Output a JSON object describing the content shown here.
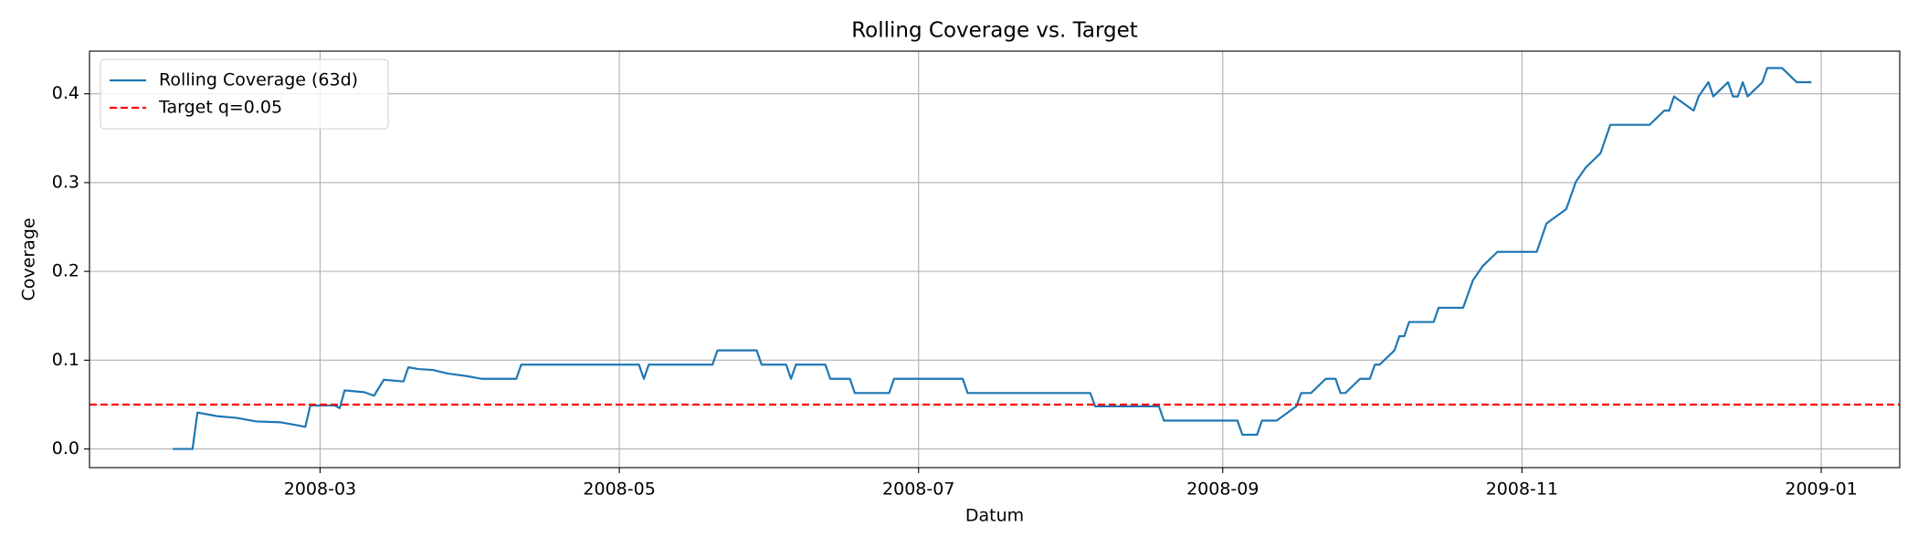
{
  "chart_data": {
    "type": "line",
    "title": "Rolling Coverage vs. Target",
    "xlabel": "Datum",
    "ylabel": "Coverage",
    "grid": true,
    "legend": "upper left",
    "xlim": [
      "2008-01-14",
      "2009-01-17"
    ],
    "xticks": [
      "2008-03",
      "2008-05",
      "2008-07",
      "2008-09",
      "2008-11",
      "2009-01"
    ],
    "ylim": [
      -0.021,
      0.448
    ],
    "yticks": [
      {
        "value": 0,
        "label": "0.0"
      },
      0.1,
      0.2,
      0.3,
      0.4
    ],
    "series": [
      {
        "name": "Rolling Coverage (63d)",
        "color": "#1f77b4",
        "x": [
          "2008-01-31",
          "2008-02-04",
          "2008-02-05",
          "2008-02-09",
          "2008-02-13",
          "2008-02-17",
          "2008-02-22",
          "2008-02-25",
          "2008-02-27",
          "2008-02-28",
          "2008-03-04",
          "2008-03-05",
          "2008-03-06",
          "2008-03-10",
          "2008-03-12",
          "2008-03-14",
          "2008-03-18",
          "2008-03-19",
          "2008-03-21",
          "2008-03-24",
          "2008-03-27",
          "2008-03-31",
          "2008-04-03",
          "2008-04-10",
          "2008-04-11",
          "2008-05-05",
          "2008-05-06",
          "2008-05-07",
          "2008-05-20",
          "2008-05-21",
          "2008-05-29",
          "2008-05-30",
          "2008-06-04",
          "2008-06-05",
          "2008-06-06",
          "2008-06-12",
          "2008-06-13",
          "2008-06-17",
          "2008-06-18",
          "2008-06-25",
          "2008-06-26",
          "2008-07-10",
          "2008-07-11",
          "2008-08-05",
          "2008-08-06",
          "2008-08-19",
          "2008-08-20",
          "2008-09-04",
          "2008-09-05",
          "2008-09-08",
          "2008-09-09",
          "2008-09-12",
          "2008-09-16",
          "2008-09-17",
          "2008-09-19",
          "2008-09-22",
          "2008-09-24",
          "2008-09-25",
          "2008-09-26",
          "2008-09-29",
          "2008-10-01",
          "2008-10-02",
          "2008-10-03",
          "2008-10-06",
          "2008-10-07",
          "2008-10-08",
          "2008-10-09",
          "2008-10-14",
          "2008-10-15",
          "2008-10-20",
          "2008-10-22",
          "2008-10-24",
          "2008-10-27",
          "2008-11-04",
          "2008-11-06",
          "2008-11-10",
          "2008-11-12",
          "2008-11-14",
          "2008-11-17",
          "2008-11-19",
          "2008-11-27",
          "2008-11-30",
          "2008-12-01",
          "2008-12-02",
          "2008-12-06",
          "2008-12-07",
          "2008-12-09",
          "2008-12-10",
          "2008-12-13",
          "2008-12-14",
          "2008-12-15",
          "2008-12-16",
          "2008-12-17",
          "2008-12-20",
          "2008-12-21",
          "2008-12-24",
          "2008-12-27",
          "2008-12-30"
        ],
        "values": [
          0,
          0,
          0.041,
          0.037,
          0.035,
          0.031,
          0.03,
          0.027,
          0.025,
          0.049,
          0.049,
          0.046,
          0.066,
          0.064,
          0.06,
          0.078,
          0.076,
          0.092,
          0.09,
          0.089,
          0.085,
          0.082,
          0.079,
          0.079,
          0.095,
          0.095,
          0.079,
          0.095,
          0.095,
          0.111,
          0.111,
          0.095,
          0.095,
          0.079,
          0.095,
          0.095,
          0.079,
          0.079,
          0.063,
          0.063,
          0.079,
          0.079,
          0.063,
          0.063,
          0.048,
          0.048,
          0.032,
          0.032,
          0.016,
          0.016,
          0.032,
          0.032,
          0.048,
          0.063,
          0.063,
          0.079,
          0.079,
          0.063,
          0.063,
          0.079,
          0.079,
          0.095,
          0.095,
          0.111,
          0.127,
          0.127,
          0.143,
          0.143,
          0.159,
          0.159,
          0.19,
          0.206,
          0.222,
          0.222,
          0.254,
          0.27,
          0.301,
          0.317,
          0.333,
          0.365,
          0.365,
          0.381,
          0.381,
          0.397,
          0.381,
          0.397,
          0.413,
          0.397,
          0.413,
          0.397,
          0.397,
          0.413,
          0.397,
          0.413,
          0.429,
          0.429,
          0.413,
          0.413
        ]
      }
    ],
    "target": {
      "name": "Target q=0.05",
      "value": 0.05,
      "color": "#ff0000",
      "dashed": true
    }
  }
}
